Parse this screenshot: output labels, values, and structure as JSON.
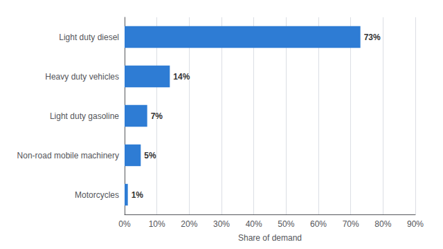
{
  "chart_data": {
    "type": "bar",
    "orientation": "horizontal",
    "categories": [
      "Light duty diesel",
      "Heavy duty vehicles",
      "Light duty gasoline",
      "Non-road mobile machinery",
      "Motorcycles"
    ],
    "values": [
      73,
      14,
      7,
      5,
      1
    ],
    "value_labels": [
      "73%",
      "14%",
      "7%",
      "5%",
      "1%"
    ],
    "data_labels": true,
    "color": "#2e7cd4",
    "xlabel": "Share of demand",
    "xlim": [
      0,
      90
    ],
    "xticks": [
      {
        "value": 0,
        "label": "0%"
      },
      {
        "value": 10,
        "label": "10%"
      },
      {
        "value": 20,
        "label": "20%"
      },
      {
        "value": 30,
        "label": "30%"
      },
      {
        "value": 40,
        "label": "40%"
      },
      {
        "value": 50,
        "label": "50%"
      },
      {
        "value": 60,
        "label": "60%"
      },
      {
        "value": 70,
        "label": "70%"
      },
      {
        "value": 80,
        "label": "80%"
      },
      {
        "value": 90,
        "label": "90%"
      }
    ],
    "grid": true
  }
}
